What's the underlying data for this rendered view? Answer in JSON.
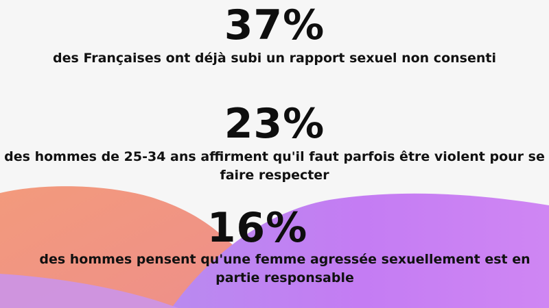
{
  "stats": [
    {
      "value": "37%",
      "description": "des Françaises ont déjà subi un rapport sexuel non consenti"
    },
    {
      "value": "23%",
      "description": "des hommes de 25-34 ans affirment qu'il faut parfois être violent pour se faire respecter"
    },
    {
      "value": "16%",
      "description": "des hommes pensent qu'une femme agressée sexuellement est en partie responsable"
    }
  ],
  "colors": {
    "background": "#f6f6f6",
    "wave_orange": "#f0957a",
    "wave_purple": "#c27ef2",
    "text": "#111111"
  }
}
